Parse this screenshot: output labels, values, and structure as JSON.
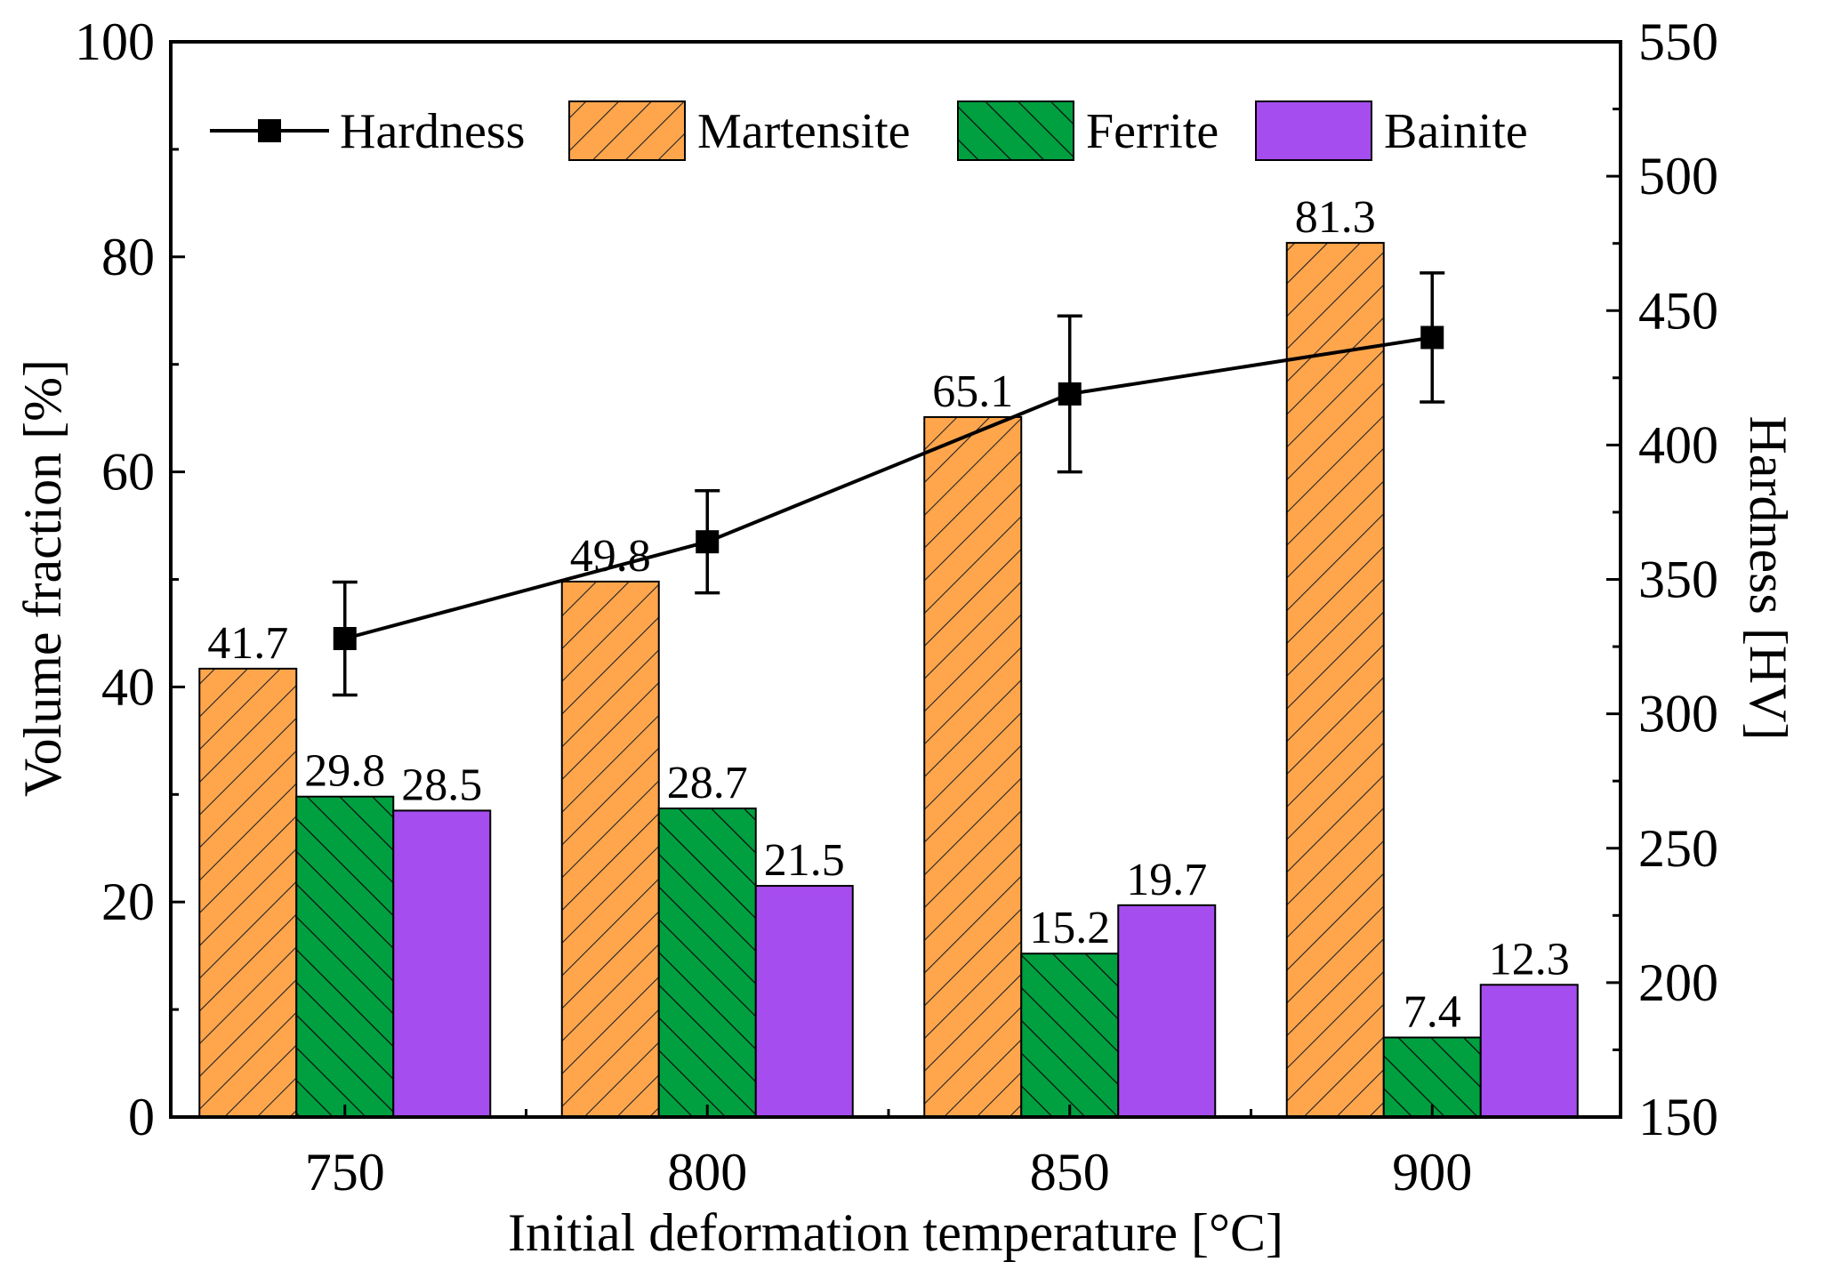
{
  "chart_data": {
    "type": "bar",
    "categories": [
      "750",
      "800",
      "850",
      "900"
    ],
    "xlabel": "Initial deformation temperature [°C]",
    "ylabel": "Volume fraction [%]",
    "ylim": [
      0,
      100
    ],
    "yticks": [
      "0",
      "20",
      "40",
      "60",
      "80",
      "100"
    ],
    "y2label": "Hardness [HV]",
    "y2lim": [
      150,
      550
    ],
    "y2ticks": [
      "150",
      "200",
      "250",
      "300",
      "350",
      "400",
      "450",
      "500",
      "550"
    ],
    "legend_position": "top",
    "series": [
      {
        "name": "Martensite",
        "kind": "bar",
        "color": "#FFA64D",
        "hatch": "forward",
        "values": [
          41.7,
          49.8,
          65.1,
          81.3
        ],
        "labels": [
          "41.7",
          "49.8",
          "65.1",
          "81.3"
        ]
      },
      {
        "name": "Ferrite",
        "kind": "bar",
        "color": "#00A040",
        "hatch": "backward",
        "values": [
          29.8,
          28.7,
          15.2,
          7.4
        ],
        "labels": [
          "29.8",
          "28.7",
          "15.2",
          "7.4"
        ]
      },
      {
        "name": "Bainite",
        "kind": "bar",
        "color": "#A64DEF",
        "hatch": "none",
        "values": [
          28.5,
          21.5,
          19.7,
          12.3
        ],
        "labels": [
          "28.5",
          "21.5",
          "19.7",
          "12.3"
        ]
      },
      {
        "name": "Hardness",
        "kind": "line",
        "axis": "right",
        "color": "#000000",
        "values": [
          328,
          364,
          419,
          440
        ],
        "errors": [
          21,
          19,
          29,
          24
        ]
      }
    ],
    "legend_order": [
      "Hardness",
      "Martensite",
      "Ferrite",
      "Bainite"
    ]
  }
}
